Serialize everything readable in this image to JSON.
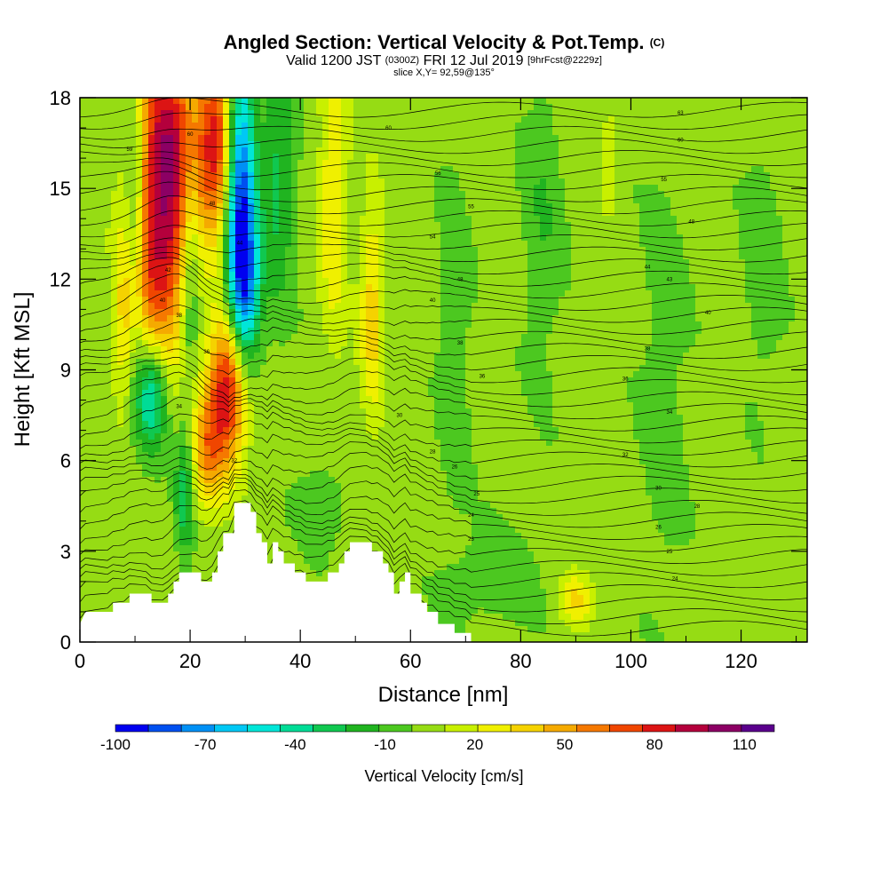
{
  "title": {
    "main": "Angled Section: Vertical Velocity & Pot.Temp.",
    "main_suffix": "(C)",
    "valid_prefix": "Valid 1200 JST",
    "valid_utc": "(0300Z)",
    "valid_date": "FRI 12 Jul 2019",
    "forecast": "[9hrFcst@2229z]",
    "slice": "slice X,Y= 92,59@135°"
  },
  "chart_data": {
    "type": "heatmap",
    "xlabel": "Distance [nm]",
    "ylabel": "Height [Kft MSL]",
    "xlim": [
      0,
      132
    ],
    "ylim": [
      0,
      18
    ],
    "x_ticks": [
      0,
      20,
      40,
      60,
      80,
      100,
      120
    ],
    "y_ticks": [
      0,
      3,
      6,
      9,
      12,
      15,
      18
    ],
    "colorbar": {
      "label": "Vertical Velocity [cm/s]",
      "tick_labels": [
        "-100",
        "-70",
        "-40",
        "-10",
        "20",
        "50",
        "80",
        "110"
      ],
      "tick_values": [
        -100,
        -70,
        -40,
        -10,
        20,
        50,
        80,
        110
      ],
      "range": [
        -100,
        120
      ],
      "colors": [
        "#0000f0",
        "#0050f0",
        "#0090f5",
        "#00c8f5",
        "#00e6d8",
        "#00dc96",
        "#10c850",
        "#20b420",
        "#4cc820",
        "#96dc14",
        "#c8f000",
        "#f0f000",
        "#f5d200",
        "#f5aa00",
        "#f57800",
        "#f04600",
        "#dc1414",
        "#b4003c",
        "#8c0064",
        "#5a008c"
      ]
    },
    "terrain_kft": [
      [
        0,
        0.6
      ],
      [
        1,
        1.0
      ],
      [
        6,
        1.0
      ],
      [
        6,
        1.3
      ],
      [
        9,
        1.3
      ],
      [
        9,
        1.6
      ],
      [
        13,
        1.6
      ],
      [
        13,
        1.3
      ],
      [
        16,
        1.3
      ],
      [
        16,
        1.6
      ],
      [
        17,
        1.6
      ],
      [
        17,
        2.0
      ],
      [
        18,
        2.0
      ],
      [
        18,
        2.3
      ],
      [
        22,
        2.3
      ],
      [
        22,
        2.0
      ],
      [
        24,
        2.0
      ],
      [
        24,
        2.3
      ],
      [
        25,
        2.3
      ],
      [
        25,
        3.0
      ],
      [
        26,
        3.0
      ],
      [
        26,
        3.6
      ],
      [
        28,
        3.6
      ],
      [
        28,
        4.6
      ],
      [
        31,
        4.6
      ],
      [
        31,
        4.3
      ],
      [
        32,
        4.3
      ],
      [
        32,
        3.6
      ],
      [
        33,
        3.6
      ],
      [
        33,
        3.3
      ],
      [
        34,
        3.3
      ],
      [
        34,
        2.6
      ],
      [
        35,
        2.6
      ],
      [
        35,
        3.3
      ],
      [
        36,
        3.3
      ],
      [
        36,
        3.0
      ],
      [
        37,
        3.0
      ],
      [
        37,
        2.6
      ],
      [
        39,
        2.6
      ],
      [
        39,
        2.3
      ],
      [
        41,
        2.3
      ],
      [
        41,
        2.0
      ],
      [
        45,
        2.0
      ],
      [
        45,
        2.3
      ],
      [
        47,
        2.3
      ],
      [
        47,
        2.6
      ],
      [
        48,
        2.6
      ],
      [
        48,
        3.0
      ],
      [
        49,
        3.0
      ],
      [
        49,
        3.3
      ],
      [
        53,
        3.3
      ],
      [
        53,
        3.0
      ],
      [
        55,
        3.0
      ],
      [
        55,
        2.6
      ],
      [
        56,
        2.6
      ],
      [
        56,
        2.3
      ],
      [
        57,
        2.3
      ],
      [
        57,
        1.6
      ],
      [
        58,
        1.6
      ],
      [
        58,
        2.0
      ],
      [
        59,
        2.0
      ],
      [
        59,
        2.3
      ],
      [
        60,
        2.3
      ],
      [
        60,
        1.6
      ],
      [
        62,
        1.6
      ],
      [
        62,
        1.3
      ],
      [
        63,
        1.3
      ],
      [
        63,
        1.0
      ],
      [
        65,
        1.0
      ],
      [
        65,
        0.6
      ],
      [
        68,
        0.6
      ],
      [
        68,
        0.3
      ],
      [
        71,
        0.3
      ],
      [
        71,
        0.0
      ]
    ],
    "velocity_features": [
      {
        "x": 16,
        "y": 16.5,
        "sx": 4.0,
        "sy": 3.0,
        "value": 85
      },
      {
        "x": 14,
        "y": 12.0,
        "sx": 3.5,
        "sy": 2.5,
        "value": 55
      },
      {
        "x": 25,
        "y": 16.5,
        "sx": 2.5,
        "sy": 2.2,
        "value": 80
      },
      {
        "x": 27,
        "y": 8.5,
        "sx": 2.5,
        "sy": 1.8,
        "value": 90
      },
      {
        "x": 23,
        "y": 6.3,
        "sx": 2.2,
        "sy": 1.4,
        "value": 45
      },
      {
        "x": 29,
        "y": 15.0,
        "sx": 2.0,
        "sy": 3.5,
        "value": -95
      },
      {
        "x": 30,
        "y": 11.5,
        "sx": 2.0,
        "sy": 1.8,
        "value": -55
      },
      {
        "x": 13,
        "y": 8.2,
        "sx": 2.0,
        "sy": 1.3,
        "value": -60
      },
      {
        "x": 10,
        "y": 14.5,
        "sx": 1.2,
        "sy": 3.5,
        "value": -35
      },
      {
        "x": 20,
        "y": 12.5,
        "sx": 1.2,
        "sy": 3.0,
        "value": -30
      },
      {
        "x": 8,
        "y": 10.5,
        "sx": 1.5,
        "sy": 2.0,
        "value": 25
      },
      {
        "x": 19,
        "y": 5.0,
        "sx": 1.2,
        "sy": 1.5,
        "value": -35
      },
      {
        "x": 36,
        "y": 15.5,
        "sx": 2.0,
        "sy": 3.0,
        "value": -30
      },
      {
        "x": 46,
        "y": 15.0,
        "sx": 1.8,
        "sy": 3.5,
        "value": 30
      },
      {
        "x": 53,
        "y": 11.0,
        "sx": 1.5,
        "sy": 2.5,
        "value": 35
      },
      {
        "x": 68,
        "y": 10.0,
        "sx": 2.0,
        "sy": 4.0,
        "value": -12
      },
      {
        "x": 84,
        "y": 14.0,
        "sx": 2.5,
        "sy": 3.5,
        "value": -14
      },
      {
        "x": 96,
        "y": 16.0,
        "sx": 1.2,
        "sy": 1.2,
        "value": 20
      },
      {
        "x": 106,
        "y": 8.5,
        "sx": 3.0,
        "sy": 5.0,
        "value": -10
      },
      {
        "x": 124,
        "y": 12.5,
        "sx": 2.5,
        "sy": 3.0,
        "value": -12
      },
      {
        "x": 44,
        "y": 4.5,
        "sx": 3.0,
        "sy": 1.0,
        "value": -14
      },
      {
        "x": 75,
        "y": 2.0,
        "sx": 6.0,
        "sy": 1.2,
        "value": -10
      },
      {
        "x": 90,
        "y": 1.4,
        "sx": 2.0,
        "sy": 0.6,
        "value": 30
      }
    ],
    "contour_labels": [
      {
        "x": 20,
        "y": 16.8,
        "text": "60"
      },
      {
        "x": 9,
        "y": 16.3,
        "text": "59"
      },
      {
        "x": 24,
        "y": 14.5,
        "text": "48"
      },
      {
        "x": 29,
        "y": 13.2,
        "text": "44"
      },
      {
        "x": 16,
        "y": 12.3,
        "text": "42"
      },
      {
        "x": 15,
        "y": 11.3,
        "text": "40"
      },
      {
        "x": 18,
        "y": 10.8,
        "text": "38"
      },
      {
        "x": 23,
        "y": 9.6,
        "text": "36"
      },
      {
        "x": 18,
        "y": 7.8,
        "text": "34"
      },
      {
        "x": 28,
        "y": 6.0,
        "text": "32"
      },
      {
        "x": 56,
        "y": 17.0,
        "text": "60"
      },
      {
        "x": 65,
        "y": 15.5,
        "text": "56"
      },
      {
        "x": 71,
        "y": 14.4,
        "text": "55"
      },
      {
        "x": 64,
        "y": 13.4,
        "text": "54"
      },
      {
        "x": 69,
        "y": 12.0,
        "text": "48"
      },
      {
        "x": 64,
        "y": 11.3,
        "text": "40"
      },
      {
        "x": 69,
        "y": 9.9,
        "text": "38"
      },
      {
        "x": 73,
        "y": 8.8,
        "text": "36"
      },
      {
        "x": 58,
        "y": 7.5,
        "text": "30"
      },
      {
        "x": 64,
        "y": 6.3,
        "text": "28"
      },
      {
        "x": 68,
        "y": 5.8,
        "text": "26"
      },
      {
        "x": 72,
        "y": 4.9,
        "text": "25"
      },
      {
        "x": 71,
        "y": 4.2,
        "text": "24"
      },
      {
        "x": 71,
        "y": 3.4,
        "text": "23"
      },
      {
        "x": 109,
        "y": 17.5,
        "text": "63"
      },
      {
        "x": 109,
        "y": 16.6,
        "text": "60"
      },
      {
        "x": 106,
        "y": 15.3,
        "text": "55"
      },
      {
        "x": 111,
        "y": 13.9,
        "text": "48"
      },
      {
        "x": 103,
        "y": 12.4,
        "text": "44"
      },
      {
        "x": 107,
        "y": 12.0,
        "text": "43"
      },
      {
        "x": 114,
        "y": 10.9,
        "text": "40"
      },
      {
        "x": 103,
        "y": 9.7,
        "text": "38"
      },
      {
        "x": 99,
        "y": 8.7,
        "text": "36"
      },
      {
        "x": 107,
        "y": 7.6,
        "text": "34"
      },
      {
        "x": 99,
        "y": 6.2,
        "text": "32"
      },
      {
        "x": 105,
        "y": 5.1,
        "text": "30"
      },
      {
        "x": 112,
        "y": 4.5,
        "text": "28"
      },
      {
        "x": 105,
        "y": 3.8,
        "text": "26"
      },
      {
        "x": 107,
        "y": 3.0,
        "text": "25"
      },
      {
        "x": 108,
        "y": 2.1,
        "text": "24"
      }
    ],
    "grid": false
  }
}
